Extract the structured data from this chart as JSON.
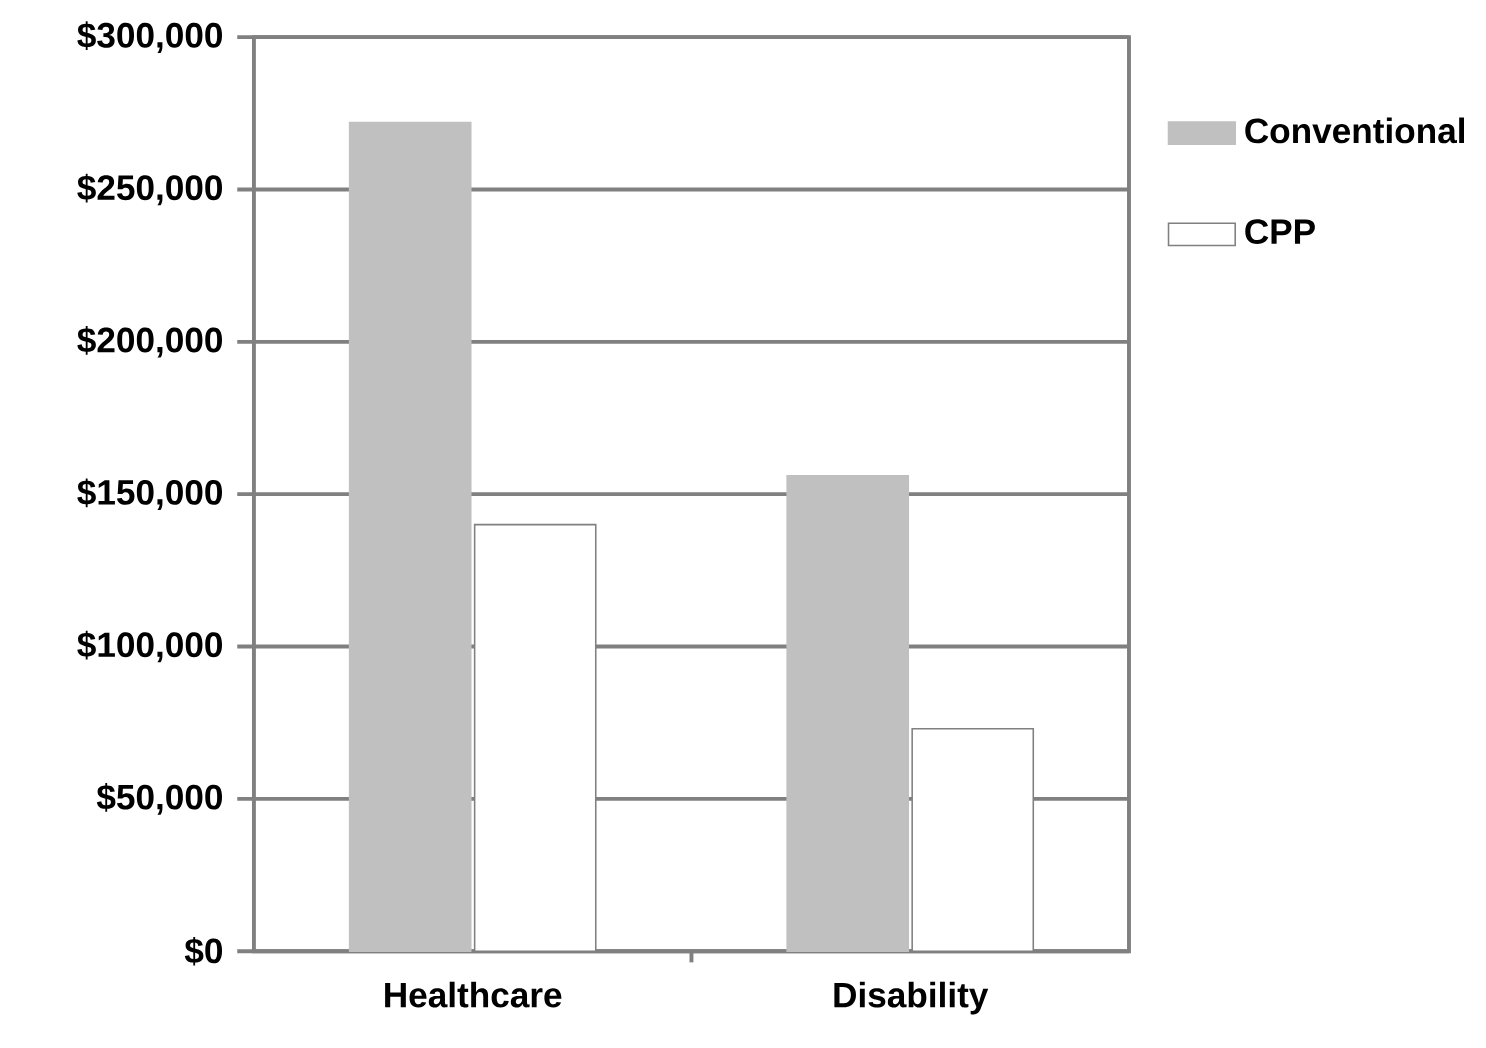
{
  "chart_data": {
    "type": "bar",
    "categories": [
      "Healthcare",
      "Disability"
    ],
    "series": [
      {
        "name": "Conventional",
        "color": "#c0c0c0",
        "values": [
          272000,
          156000
        ]
      },
      {
        "name": "CPP",
        "color": "#ffffff",
        "values": [
          140000,
          73000
        ]
      }
    ],
    "ylim": [
      0,
      300000
    ],
    "yticks": [
      {
        "value": 0,
        "label": "$0"
      },
      {
        "value": 50000,
        "label": "$50,000"
      },
      {
        "value": 100000,
        "label": "$100,000"
      },
      {
        "value": 150000,
        "label": "$150,000"
      },
      {
        "value": 200000,
        "label": "$200,000"
      },
      {
        "value": 250000,
        "label": "$250,000"
      },
      {
        "value": 300000,
        "label": "$300,000"
      }
    ],
    "grid": "y",
    "legend": "top right"
  }
}
